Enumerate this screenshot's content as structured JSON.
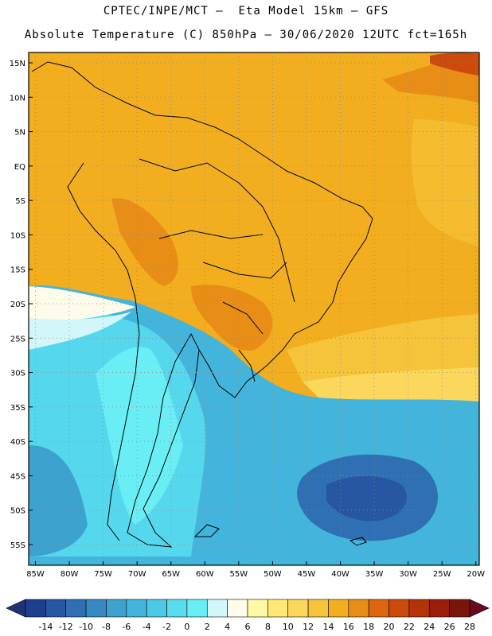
{
  "header": {
    "line1": "CPTEC/INPE/MCT –  Eta Model 15km – GFS",
    "line2": "Absolute Temperature (C) 850hPa – 30/06/2020 12UTC fct=165h"
  },
  "map": {
    "lat_labels": [
      "15N",
      "10N",
      "5N",
      "EQ",
      "5S",
      "10S",
      "15S",
      "20S",
      "25S",
      "30S",
      "35S",
      "40S",
      "45S",
      "50S",
      "55S"
    ],
    "lon_labels": [
      "85W",
      "80W",
      "75W",
      "70W",
      "65W",
      "60W",
      "55W",
      "50W",
      "45W",
      "40W",
      "35W",
      "30W",
      "25W",
      "20W"
    ],
    "lat_values": [
      15,
      10,
      5,
      0,
      -5,
      -10,
      -15,
      -20,
      -25,
      -30,
      -35,
      -40,
      -45,
      -50,
      -55
    ],
    "lon_values": [
      -85,
      -80,
      -75,
      -70,
      -65,
      -60,
      -55,
      -50,
      -45,
      -40,
      -35,
      -30,
      -25,
      -20
    ],
    "lat_range": [
      -58,
      16.5
    ],
    "lon_range": [
      -86,
      -19.5
    ],
    "grid": "dotted"
  },
  "legend": {
    "labels": [
      "-14",
      "-12",
      "-10",
      "-8",
      "-6",
      "-4",
      "-2",
      "0",
      "2",
      "4",
      "6",
      "8",
      "10",
      "12",
      "14",
      "16",
      "18",
      "20",
      "22",
      "24",
      "26",
      "28"
    ],
    "colors": [
      "#1d3f8e",
      "#2757a3",
      "#2f6fb3",
      "#3789c2",
      "#3ea2cf",
      "#43b5dd",
      "#4cc9e7",
      "#58dcee",
      "#68eef4",
      "#d3f6fb",
      "#fffbea",
      "#fff8a4",
      "#fde876",
      "#fbd75b",
      "#f6c43a",
      "#f2ae1e",
      "#e88d15",
      "#dd6610",
      "#cc4a0b",
      "#b63209",
      "#9b1e0a",
      "#7a150b"
    ],
    "arrow_left_color": "#1e3278",
    "arrow_right_color": "#6b0a1f"
  }
}
